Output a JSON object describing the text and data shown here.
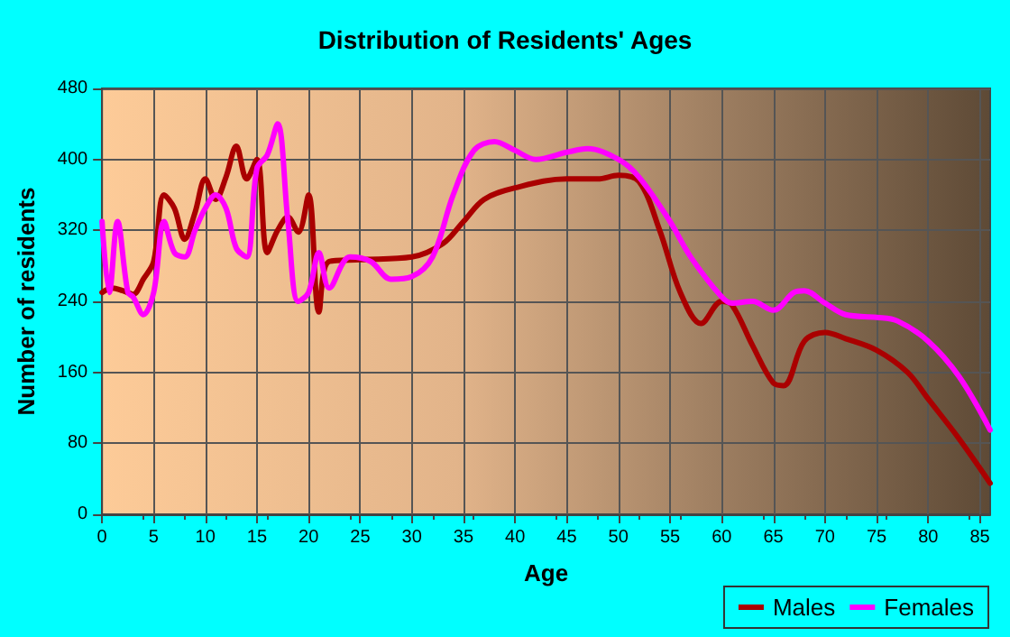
{
  "chart_data": {
    "type": "line",
    "title": "Distribution of Residents' Ages",
    "xlabel": "Age",
    "ylabel": "Number of residents",
    "xlim": [
      0,
      86
    ],
    "xticks": [
      0,
      5,
      10,
      15,
      20,
      25,
      30,
      35,
      40,
      45,
      50,
      55,
      60,
      65,
      70,
      75,
      80,
      85
    ],
    "ylim": [
      0,
      480
    ],
    "yticks": [
      0,
      80,
      160,
      240,
      320,
      400,
      480
    ],
    "grid": true,
    "legend": "bottom right",
    "marker": "none",
    "line_style": "solid",
    "series": [
      {
        "name": "Males",
        "color": "#aa0000",
        "x": [
          0,
          1,
          2,
          3,
          4,
          5,
          6,
          7,
          8,
          9,
          10,
          11,
          12,
          13,
          14,
          15,
          16,
          17,
          18,
          19,
          20,
          21,
          22,
          25,
          30,
          33,
          35,
          37,
          40,
          45,
          48,
          50,
          52,
          54,
          56,
          58,
          60,
          61,
          63,
          65,
          66,
          68,
          70,
          72,
          75,
          78,
          80,
          83,
          86
        ],
        "values": [
          250,
          255,
          252,
          248,
          265,
          285,
          360,
          345,
          310,
          340,
          378,
          355,
          380,
          415,
          378,
          400,
          295,
          320,
          335,
          318,
          360,
          228,
          285,
          287,
          290,
          305,
          330,
          355,
          368,
          378,
          378,
          382,
          375,
          320,
          250,
          215,
          240,
          236,
          190,
          148,
          145,
          195,
          205,
          198,
          185,
          160,
          130,
          85,
          35
        ]
      },
      {
        "name": "Females",
        "color": "#ff00ff",
        "x": [
          0,
          0.7,
          1.5,
          2.5,
          3,
          4,
          5,
          6,
          7,
          8,
          9,
          10,
          11,
          12,
          13,
          14,
          15,
          16,
          17,
          18,
          19,
          20,
          21,
          22,
          24,
          26,
          28,
          30,
          32,
          34,
          36,
          38,
          40,
          42,
          45,
          47,
          50,
          52,
          55,
          57,
          60,
          61,
          63,
          65,
          67,
          68,
          70,
          72,
          75,
          77,
          80,
          83,
          86
        ],
        "values": [
          330,
          250,
          330,
          250,
          245,
          225,
          250,
          330,
          295,
          290,
          320,
          345,
          360,
          345,
          300,
          290,
          390,
          405,
          440,
          330,
          240,
          250,
          295,
          255,
          290,
          285,
          265,
          268,
          290,
          360,
          410,
          420,
          410,
          400,
          408,
          412,
          400,
          380,
          330,
          290,
          245,
          238,
          240,
          230,
          250,
          252,
          238,
          225,
          222,
          218,
          195,
          155,
          95
        ]
      }
    ]
  }
}
